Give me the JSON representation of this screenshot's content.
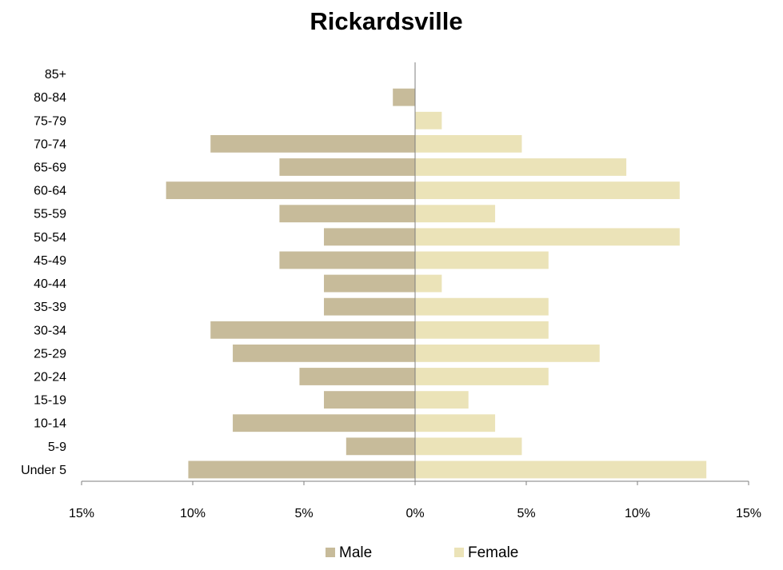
{
  "chart_data": {
    "type": "bar",
    "orientation": "horizontal",
    "title": "Rickardsville",
    "categories": [
      "Under 5",
      "5-9",
      "10-14",
      "15-19",
      "20-24",
      "25-29",
      "30-34",
      "35-39",
      "40-44",
      "45-49",
      "50-54",
      "55-59",
      "60-64",
      "65-69",
      "70-74",
      "75-79",
      "80-84",
      "85+"
    ],
    "series": [
      {
        "name": "Male",
        "color": "#c7bb9a",
        "values": [
          -10.2,
          -3.1,
          -8.2,
          -4.1,
          -5.2,
          -8.2,
          -9.2,
          -4.1,
          -4.1,
          -6.1,
          -4.1,
          -6.1,
          -11.2,
          -6.1,
          -9.2,
          0,
          -1.0,
          0
        ]
      },
      {
        "name": "Female",
        "color": "#ebe3b8",
        "values": [
          13.1,
          4.8,
          3.6,
          2.4,
          6.0,
          8.3,
          6.0,
          6.0,
          1.2,
          6.0,
          11.9,
          3.6,
          11.9,
          9.5,
          4.8,
          1.2,
          0,
          0
        ]
      }
    ],
    "xlim": [
      -15,
      15
    ],
    "xticks": [
      -15,
      -10,
      -5,
      0,
      5,
      10,
      15
    ],
    "xtick_labels": [
      "15%",
      "10%",
      "5%",
      "0%",
      "5%",
      "10%",
      "15%"
    ],
    "legend_position": "bottom",
    "grid": false
  }
}
